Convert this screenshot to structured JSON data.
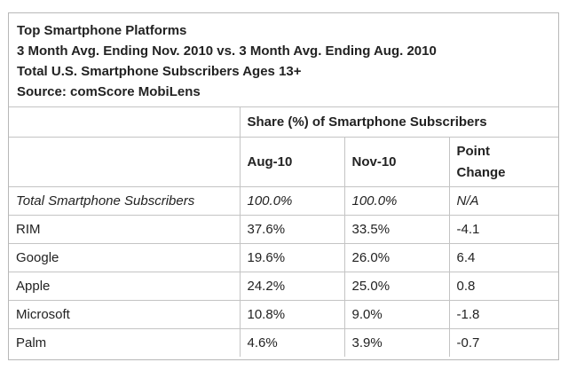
{
  "chart_data": {
    "type": "table",
    "title_lines": [
      "Top Smartphone Platforms",
      "3 Month Avg. Ending Nov. 2010 vs. 3 Month Avg. Ending Aug. 2010",
      "Total U.S. Smartphone Subscribers Ages 13+",
      "Source: comScore MobiLens"
    ],
    "group_header": "Share (%) of Smartphone Subscribers",
    "columns": [
      "Aug-10",
      "Nov-10",
      "Point Change"
    ],
    "column_lines": {
      "aug": "Aug-10",
      "nov": "Nov-10",
      "change_line1": "Point",
      "change_line2": "Change"
    },
    "rows": [
      {
        "label": "Total Smartphone Subscribers",
        "aug": "100.0%",
        "nov": "100.0%",
        "change": "N/A"
      },
      {
        "label": "RIM",
        "aug": "37.6%",
        "nov": "33.5%",
        "change": "-4.1"
      },
      {
        "label": "Google",
        "aug": "19.6%",
        "nov": "26.0%",
        "change": "6.4"
      },
      {
        "label": "Apple",
        "aug": "24.2%",
        "nov": "25.0%",
        "change": "0.8"
      },
      {
        "label": "Microsoft",
        "aug": "10.8%",
        "nov": "9.0%",
        "change": "-1.8"
      },
      {
        "label": "Palm",
        "aug": "4.6%",
        "nov": "3.9%",
        "change": "-0.7"
      }
    ]
  }
}
